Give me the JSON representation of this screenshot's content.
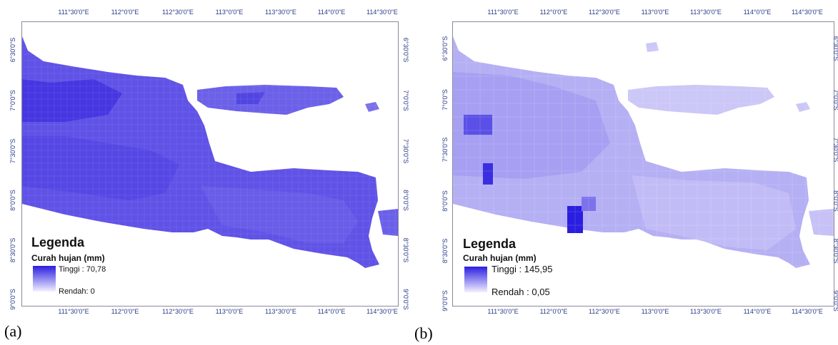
{
  "panel_a": {
    "caption": "(a)",
    "top_ticks": [
      "111°30'0\"E",
      "112°0'0\"E",
      "112°30'0\"E",
      "113°0'0\"E",
      "113°30'0\"E",
      "114°0'0\"E",
      "114°30'0\"E"
    ],
    "bottom_ticks": [
      "111°30'0\"E",
      "112°0'0\"E",
      "112°30'0\"E",
      "113°0'0\"E",
      "113°30'0\"E",
      "114°0'0\"E",
      "114°30'0\"E"
    ],
    "left_ticks": [
      "6°30'0\"S",
      "7°0'0\"S",
      "7°30'0\"S",
      "8°0'0\"S",
      "8°30'0\"S",
      "9°0'0\"S"
    ],
    "right_ticks": [
      "6°30'0\"S",
      "7°0'0\"S",
      "7°30'0\"S",
      "8°0'0\"S",
      "8°30'0\"S",
      "9°0'0\"S"
    ],
    "legend_title": "Legenda",
    "legend_subtitle": "Curah hujan (mm)",
    "legend_high": "Tinggi : 70,78",
    "legend_low": "Rendah: 0",
    "high_color": "#2a1ee0",
    "low_color": "#f2f0ff"
  },
  "panel_b": {
    "caption": "(b)",
    "top_ticks": [
      "111°30'0\"E",
      "112°0'0\"E",
      "112°30'0\"E",
      "113°0'0\"E",
      "113°30'0\"E",
      "114°0'0\"E",
      "114°30'0\"E"
    ],
    "bottom_ticks": [
      "111°30'0\"E",
      "112°0'0\"E",
      "112°30'0\"E",
      "113°0'0\"E",
      "113°30'0\"E",
      "114°0'0\"E",
      "114°30'0\"E"
    ],
    "left_ticks": [
      "6°30'0\"S",
      "7°0'0\"S",
      "7°30'0\"S",
      "8°0'0\"S",
      "8°30'0\"S",
      "9°0'0\"S"
    ],
    "right_ticks": [
      "6°30'0\"S",
      "7°0'0\"S",
      "7°30'0\"S",
      "8°0'0\"S",
      "8°30'0\"S",
      "9°0'0\"S"
    ],
    "legend_title": "Legenda",
    "legend_subtitle": "Curah hujan (mm)",
    "legend_high": "Tinggi : 145,95",
    "legend_low": "Rendah : 0,05",
    "high_color": "#2a1ee0",
    "low_color": "#f2f0ff"
  }
}
